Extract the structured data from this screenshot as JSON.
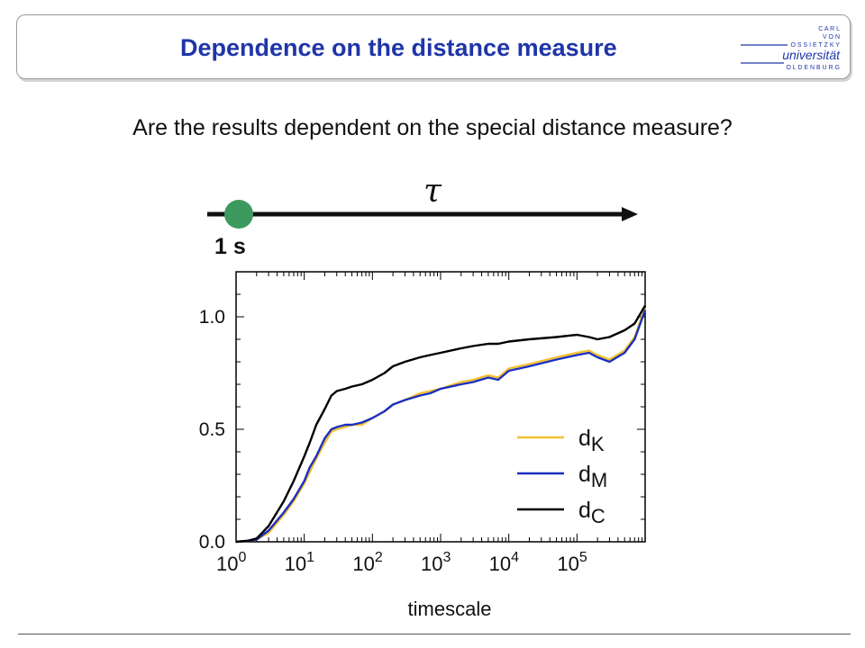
{
  "slide": {
    "title": "Dependence on the distance measure",
    "question": "Are the results dependent on the special distance measure?",
    "tau_symbol": "τ",
    "time_label": "1 s",
    "logo": {
      "lines": [
        "C A R L",
        "V O N",
        "O S S I E T Z K Y",
        "universität",
        "O L D E N B U R G"
      ],
      "color": "#1f35a8"
    },
    "timeline": {
      "marker_color": "#3d9a5e",
      "line_color": "#111111"
    }
  },
  "chart_data": {
    "type": "line",
    "xlabel": "timescale",
    "ylabel": "",
    "x_scale": "log",
    "xlim": [
      1,
      1000000
    ],
    "ylim": [
      0.0,
      1.2
    ],
    "x_tick_labels": [
      {
        "base": "10",
        "exp": "0",
        "value": 1
      },
      {
        "base": "10",
        "exp": "1",
        "value": 10
      },
      {
        "base": "10",
        "exp": "2",
        "value": 100
      },
      {
        "base": "10",
        "exp": "3",
        "value": 1000
      },
      {
        "base": "10",
        "exp": "4",
        "value": 10000
      },
      {
        "base": "10",
        "exp": "5",
        "value": 100000
      }
    ],
    "y_ticks": [
      {
        "value": 0.0,
        "label": "0.0"
      },
      {
        "value": 0.5,
        "label": "0.5"
      },
      {
        "value": 1.0,
        "label": "1.0"
      }
    ],
    "legend_position": "bottom-right",
    "series": [
      {
        "name": "d",
        "sub": "K",
        "color": "#f2c12e",
        "points": [
          [
            1,
            0.0
          ],
          [
            1.5,
            0.005
          ],
          [
            2,
            0.01
          ],
          [
            3,
            0.04
          ],
          [
            5,
            0.12
          ],
          [
            7,
            0.18
          ],
          [
            10,
            0.26
          ],
          [
            12,
            0.31
          ],
          [
            15,
            0.37
          ],
          [
            20,
            0.44
          ],
          [
            25,
            0.49
          ],
          [
            30,
            0.5
          ],
          [
            40,
            0.51
          ],
          [
            50,
            0.52
          ],
          [
            70,
            0.52
          ],
          [
            100,
            0.55
          ],
          [
            150,
            0.58
          ],
          [
            200,
            0.61
          ],
          [
            300,
            0.63
          ],
          [
            500,
            0.66
          ],
          [
            700,
            0.67
          ],
          [
            1000,
            0.68
          ],
          [
            2000,
            0.71
          ],
          [
            3000,
            0.72
          ],
          [
            5000,
            0.74
          ],
          [
            7000,
            0.73
          ],
          [
            10000,
            0.77
          ],
          [
            20000,
            0.79
          ],
          [
            50000,
            0.82
          ],
          [
            100000,
            0.84
          ],
          [
            150000,
            0.85
          ],
          [
            200000,
            0.83
          ],
          [
            300000,
            0.81
          ],
          [
            500000,
            0.85
          ],
          [
            700000,
            0.91
          ],
          [
            1000000,
            1.04
          ]
        ]
      },
      {
        "name": "d",
        "sub": "M",
        "color": "#1a2fc0",
        "points": [
          [
            1,
            0.0
          ],
          [
            1.5,
            0.005
          ],
          [
            2,
            0.01
          ],
          [
            3,
            0.05
          ],
          [
            5,
            0.13
          ],
          [
            7,
            0.19
          ],
          [
            10,
            0.27
          ],
          [
            12,
            0.33
          ],
          [
            15,
            0.38
          ],
          [
            20,
            0.46
          ],
          [
            25,
            0.5
          ],
          [
            30,
            0.51
          ],
          [
            40,
            0.52
          ],
          [
            50,
            0.52
          ],
          [
            70,
            0.53
          ],
          [
            100,
            0.55
          ],
          [
            150,
            0.58
          ],
          [
            200,
            0.61
          ],
          [
            300,
            0.63
          ],
          [
            500,
            0.65
          ],
          [
            700,
            0.66
          ],
          [
            1000,
            0.68
          ],
          [
            2000,
            0.7
          ],
          [
            3000,
            0.71
          ],
          [
            5000,
            0.73
          ],
          [
            7000,
            0.72
          ],
          [
            10000,
            0.76
          ],
          [
            20000,
            0.78
          ],
          [
            50000,
            0.81
          ],
          [
            100000,
            0.83
          ],
          [
            150000,
            0.84
          ],
          [
            200000,
            0.82
          ],
          [
            300000,
            0.8
          ],
          [
            500000,
            0.84
          ],
          [
            700000,
            0.9
          ],
          [
            1000000,
            1.03
          ]
        ]
      },
      {
        "name": "d",
        "sub": "C",
        "color": "#000000",
        "points": [
          [
            1,
            0.0
          ],
          [
            1.5,
            0.005
          ],
          [
            2,
            0.015
          ],
          [
            3,
            0.07
          ],
          [
            5,
            0.18
          ],
          [
            7,
            0.27
          ],
          [
            10,
            0.38
          ],
          [
            12,
            0.44
          ],
          [
            15,
            0.52
          ],
          [
            20,
            0.59
          ],
          [
            25,
            0.65
          ],
          [
            30,
            0.67
          ],
          [
            40,
            0.68
          ],
          [
            50,
            0.69
          ],
          [
            70,
            0.7
          ],
          [
            100,
            0.72
          ],
          [
            150,
            0.75
          ],
          [
            200,
            0.78
          ],
          [
            300,
            0.8
          ],
          [
            500,
            0.82
          ],
          [
            700,
            0.83
          ],
          [
            1000,
            0.84
          ],
          [
            2000,
            0.86
          ],
          [
            3000,
            0.87
          ],
          [
            5000,
            0.88
          ],
          [
            7000,
            0.88
          ],
          [
            10000,
            0.89
          ],
          [
            20000,
            0.9
          ],
          [
            50000,
            0.91
          ],
          [
            100000,
            0.92
          ],
          [
            150000,
            0.91
          ],
          [
            200000,
            0.9
          ],
          [
            300000,
            0.91
          ],
          [
            500000,
            0.94
          ],
          [
            700000,
            0.97
          ],
          [
            1000000,
            1.05
          ]
        ]
      }
    ]
  }
}
